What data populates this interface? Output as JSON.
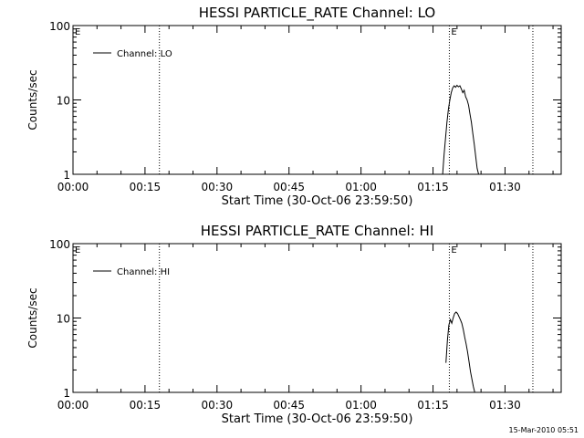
{
  "footer": {
    "timestamp": "15-Mar-2010 05:51"
  },
  "chart_data": [
    {
      "type": "line",
      "title": "HESSI PARTICLE_RATE Channel: LO",
      "xlabel": "Start Time (30-Oct-06 23:59:50)",
      "ylabel": "Counts/sec",
      "y_scale": "log",
      "ylim": [
        1,
        100
      ],
      "xlim_minutes": [
        0,
        101.7
      ],
      "x_ticks": [
        {
          "label": "00:00",
          "minutes": 0
        },
        {
          "label": "00:15",
          "minutes": 15
        },
        {
          "label": "00:30",
          "minutes": 30
        },
        {
          "label": "00:45",
          "minutes": 45
        },
        {
          "label": "01:00",
          "minutes": 60
        },
        {
          "label": "01:15",
          "minutes": 75
        },
        {
          "label": "01:30",
          "minutes": 90
        }
      ],
      "y_ticks": [
        {
          "label": "1",
          "value": 1
        },
        {
          "label": "10",
          "value": 10
        },
        {
          "label": "100",
          "value": 100
        }
      ],
      "legend": {
        "placement": "top-left",
        "entries": [
          "Channel: LO"
        ]
      },
      "markers": [
        {
          "label": "E",
          "minutes": 0,
          "line": false
        },
        {
          "minutes": 18.0,
          "line": true
        },
        {
          "label": "E",
          "minutes": 78.4,
          "line": true
        },
        {
          "minutes": 95.8,
          "line": true
        }
      ],
      "series": [
        {
          "x": [
            77.0,
            77.3,
            77.6,
            77.9,
            78.2,
            78.5,
            78.8,
            79.1,
            79.4,
            79.7,
            80.0,
            80.3,
            80.6,
            80.9,
            81.2,
            81.5,
            81.8,
            82.1,
            82.4,
            82.7,
            83.0,
            83.3,
            83.6,
            83.9,
            84.2,
            84.5
          ],
          "y": [
            1.0,
            1.8,
            3.0,
            5.0,
            7.5,
            10.0,
            12.5,
            14.5,
            15.5,
            14.8,
            15.7,
            15.0,
            15.5,
            14.0,
            12.5,
            13.5,
            11.0,
            10.0,
            8.5,
            6.5,
            5.0,
            3.5,
            2.5,
            1.7,
            1.2,
            1.0
          ]
        }
      ]
    },
    {
      "type": "line",
      "title": "HESSI PARTICLE_RATE Channel: HI",
      "xlabel": "Start Time (30-Oct-06 23:59:50)",
      "ylabel": "Counts/sec",
      "y_scale": "log",
      "ylim": [
        1,
        100
      ],
      "xlim_minutes": [
        0,
        101.7
      ],
      "x_ticks": [
        {
          "label": "00:00",
          "minutes": 0
        },
        {
          "label": "00:15",
          "minutes": 15
        },
        {
          "label": "00:30",
          "minutes": 30
        },
        {
          "label": "00:45",
          "minutes": 45
        },
        {
          "label": "01:00",
          "minutes": 60
        },
        {
          "label": "01:15",
          "minutes": 75
        },
        {
          "label": "01:30",
          "minutes": 90
        }
      ],
      "y_ticks": [
        {
          "label": "1",
          "value": 1
        },
        {
          "label": "10",
          "value": 10
        },
        {
          "label": "100",
          "value": 100
        }
      ],
      "legend": {
        "placement": "top-left",
        "entries": [
          "Channel: HI"
        ]
      },
      "markers": [
        {
          "label": "E",
          "minutes": 0,
          "line": false
        },
        {
          "minutes": 18.0,
          "line": true
        },
        {
          "label": "E",
          "minutes": 78.4,
          "line": true
        },
        {
          "minutes": 95.8,
          "line": true
        }
      ],
      "series": [
        {
          "x": [
            77.7,
            78.0,
            78.3,
            78.6,
            78.9,
            79.2,
            79.5,
            79.8,
            80.1,
            80.4,
            80.7,
            81.0,
            81.3,
            81.6,
            81.9,
            82.2,
            82.5,
            82.8,
            83.1,
            83.4,
            83.7
          ],
          "y": [
            2.5,
            5.0,
            8.0,
            9.5,
            8.5,
            10.0,
            11.5,
            12.0,
            11.5,
            10.5,
            9.5,
            8.5,
            7.0,
            5.5,
            4.5,
            3.5,
            2.6,
            1.9,
            1.5,
            1.2,
            1.0
          ]
        }
      ]
    }
  ]
}
